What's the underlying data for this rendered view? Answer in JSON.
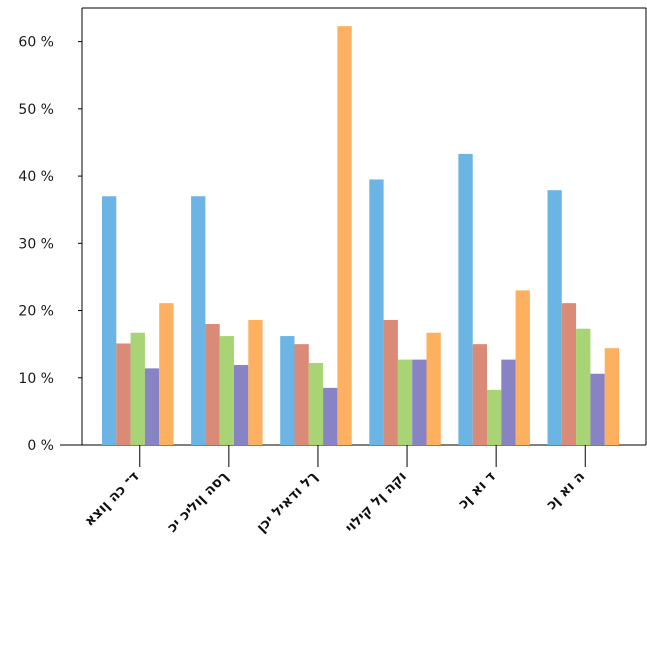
{
  "chart_data": {
    "type": "bar",
    "title": "",
    "xlabel": "",
    "ylabel": "",
    "ylim": [
      0,
      65
    ],
    "y_ticks": [
      0,
      10,
      20,
      30,
      40,
      50,
      60
    ],
    "y_tick_suffix": " %",
    "grid": false,
    "legend": "none",
    "categories": [
      "ד־ כה ןוצא",
      "ךסה ןוליכ יכ",
      "ךל ודאיל יכן",
      "וקה ןל קילוי",
      "ד וא ןכ",
      "ה וא ןכ"
    ],
    "series": [
      {
        "color": "#6cb4e4",
        "values": [
          37.0,
          37.0,
          16.2,
          39.5,
          43.3,
          37.9
        ]
      },
      {
        "color": "#d98b77",
        "values": [
          15.1,
          18.0,
          15.0,
          18.6,
          15.0,
          21.1
        ]
      },
      {
        "color": "#a8d475",
        "values": [
          16.7,
          16.2,
          12.2,
          12.7,
          8.2,
          17.3
        ]
      },
      {
        "color": "#8883c4",
        "values": [
          11.4,
          11.9,
          8.5,
          12.7,
          12.7,
          10.6
        ]
      },
      {
        "color": "#fcb060",
        "values": [
          21.1,
          18.6,
          62.3,
          16.7,
          23.0,
          14.4
        ]
      }
    ]
  }
}
